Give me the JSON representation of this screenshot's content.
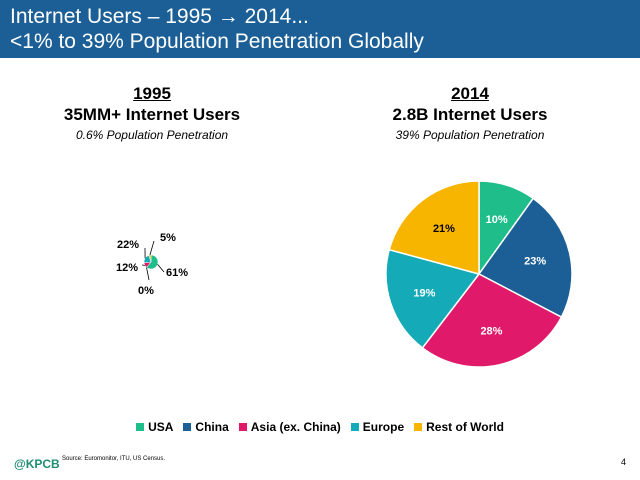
{
  "header": {
    "line1": "Internet Users – 1995 → 2014...",
    "line2": "<1% to 39% Population Penetration Globally"
  },
  "left": {
    "year": "1995",
    "users": "35MM+ Internet Users",
    "penetration": "0.6% Population Penetration"
  },
  "right": {
    "year": "2014",
    "users": "2.8B Internet Users",
    "penetration": "39% Population Penetration"
  },
  "legend": [
    {
      "label": "USA",
      "color": "#1fbd8a"
    },
    {
      "label": "China",
      "color": "#1b5f96"
    },
    {
      "label": "Asia (ex. China)",
      "color": "#e0196a"
    },
    {
      "label": "Europe",
      "color": "#15aab8"
    },
    {
      "label": "Rest of World",
      "color": "#f7b500"
    }
  ],
  "footer": {
    "logo": "@KPCB",
    "source": "Source: Euromonitor, ITU, US Census.",
    "page": "4"
  },
  "chart_data": [
    {
      "type": "pie",
      "title": "1995",
      "categories": [
        "USA",
        "China",
        "Asia (ex. China)",
        "Europe",
        "Rest of World"
      ],
      "values": [
        61,
        0,
        12,
        22,
        5
      ],
      "labels": [
        "61%",
        "0%",
        "12%",
        "22%",
        "5%"
      ]
    },
    {
      "type": "pie",
      "title": "2014",
      "categories": [
        "USA",
        "China",
        "Asia (ex. China)",
        "Europe",
        "Rest of World"
      ],
      "values": [
        10,
        23,
        28,
        19,
        21
      ],
      "labels": [
        "10%",
        "23%",
        "28%",
        "19%",
        "21%"
      ]
    }
  ]
}
